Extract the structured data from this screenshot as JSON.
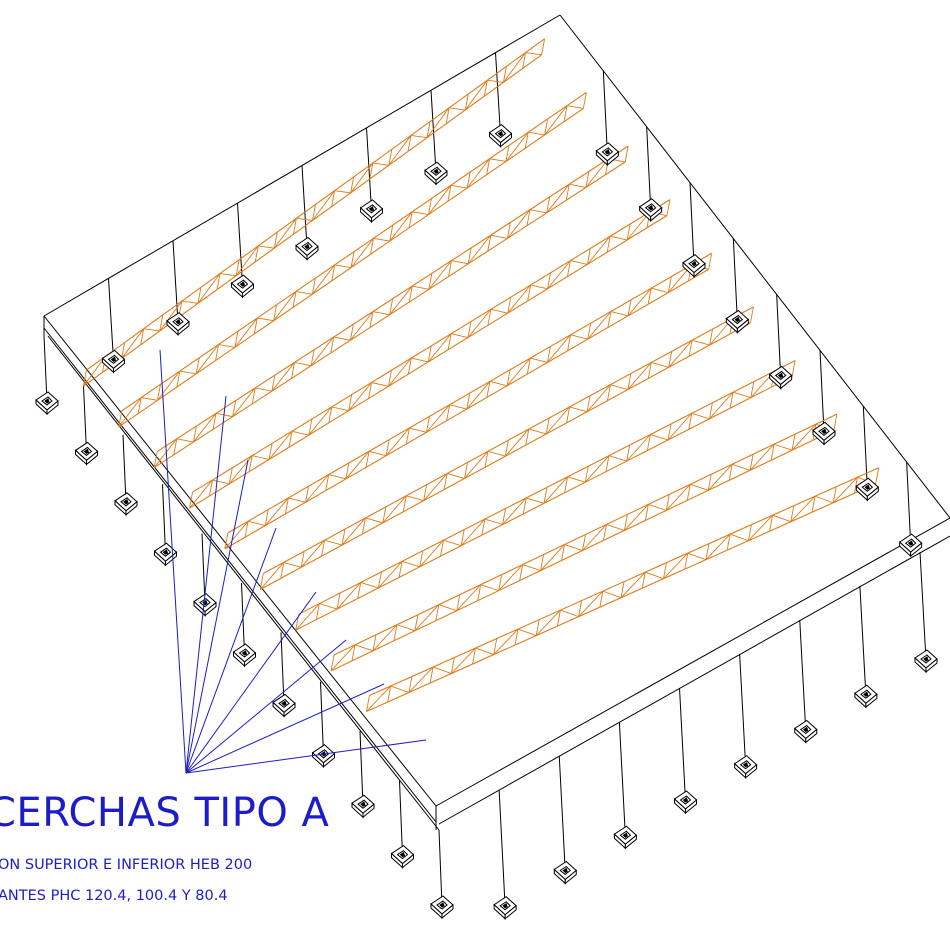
{
  "drawing": {
    "title": "CERCHAS TIPO A",
    "note_1": "ON SUPERIOR E INFERIOR HEB 200",
    "note_2": "ANTES PHC 120.4, 100.4 Y 80.4"
  },
  "colors": {
    "structure": "#000000",
    "truss": "#e07b1a",
    "annotation": "#1c1cc8",
    "background": "#ffffff"
  },
  "counts": {
    "trusses": 9,
    "front_columns": 11,
    "right_columns": 9
  }
}
